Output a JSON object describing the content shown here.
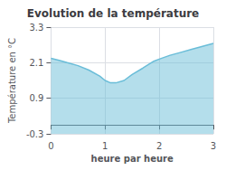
{
  "chart_data": {
    "type": "area",
    "title": "Evolution de la température",
    "xlabel": "heure par heure",
    "ylabel": "Température en °C",
    "x": [
      0,
      0.15,
      0.3,
      0.5,
      0.7,
      0.9,
      1.0,
      1.1,
      1.2,
      1.35,
      1.5,
      1.7,
      1.9,
      2.0,
      2.2,
      2.4,
      2.6,
      2.8,
      3.0
    ],
    "values": [
      2.25,
      2.18,
      2.1,
      2.0,
      1.85,
      1.65,
      1.5,
      1.42,
      1.42,
      1.5,
      1.7,
      1.92,
      2.15,
      2.22,
      2.35,
      2.45,
      2.55,
      2.65,
      2.75
    ],
    "color": "#6abdd8",
    "xlim": [
      0,
      3
    ],
    "xticks": [
      0,
      1,
      2,
      3
    ],
    "ylim": [
      -0.3,
      3.3
    ],
    "yticks": [
      -0.3,
      0.9,
      2.1,
      3.3
    ],
    "grid": true
  }
}
